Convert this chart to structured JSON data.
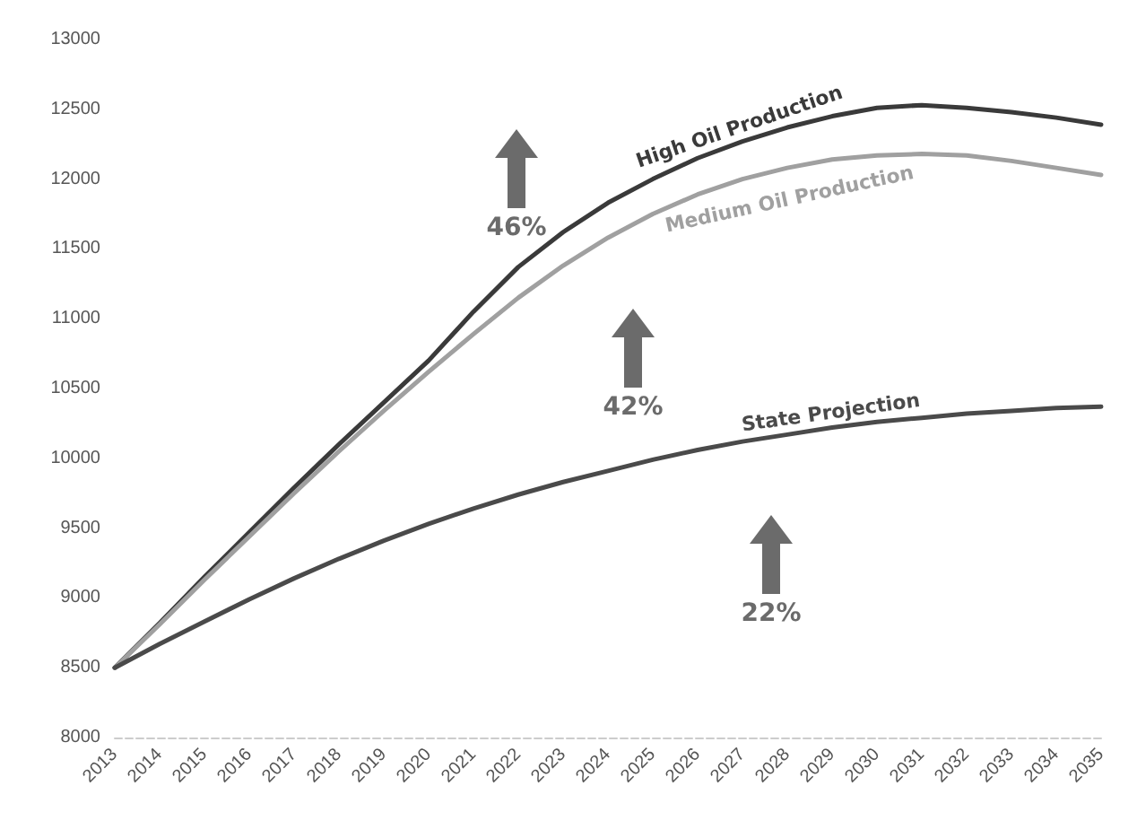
{
  "chart_data": {
    "type": "line",
    "categories": [
      "2013",
      "2014",
      "2015",
      "2016",
      "2017",
      "2018",
      "2019",
      "2020",
      "2021",
      "2022",
      "2023",
      "2024",
      "2025",
      "2026",
      "2027",
      "2028",
      "2029",
      "2030",
      "2031",
      "2032",
      "2033",
      "2034",
      "2035"
    ],
    "series": [
      {
        "name": "High Oil Production",
        "color": "#3a3a3a",
        "values": [
          8500,
          8820,
          9150,
          9470,
          9790,
          10100,
          10400,
          10700,
          11050,
          11370,
          11620,
          11830,
          12000,
          12150,
          12270,
          12370,
          12450,
          12510,
          12530,
          12510,
          12480,
          12440,
          12390
        ]
      },
      {
        "name": "Medium Oil Production",
        "color": "#a0a0a0",
        "values": [
          8500,
          8810,
          9130,
          9440,
          9750,
          10050,
          10340,
          10620,
          10890,
          11150,
          11380,
          11580,
          11750,
          11890,
          12000,
          12080,
          12140,
          12170,
          12180,
          12170,
          12130,
          12080,
          12030
        ]
      },
      {
        "name": "State Projection",
        "color": "#4a4a4a",
        "values": [
          8500,
          8670,
          8830,
          8990,
          9140,
          9280,
          9410,
          9530,
          9640,
          9740,
          9830,
          9910,
          9990,
          10060,
          10120,
          10170,
          10220,
          10260,
          10290,
          10320,
          10340,
          10360,
          10370
        ]
      }
    ],
    "annotations": [
      "46%",
      "42%",
      "22%"
    ],
    "ylim": [
      8000,
      13000
    ],
    "yticks": [
      8000,
      8500,
      9000,
      9500,
      10000,
      10500,
      11000,
      11500,
      12000,
      12500,
      13000
    ],
    "grid": false,
    "legend": false,
    "marker": "none",
    "line_style": "solid"
  }
}
